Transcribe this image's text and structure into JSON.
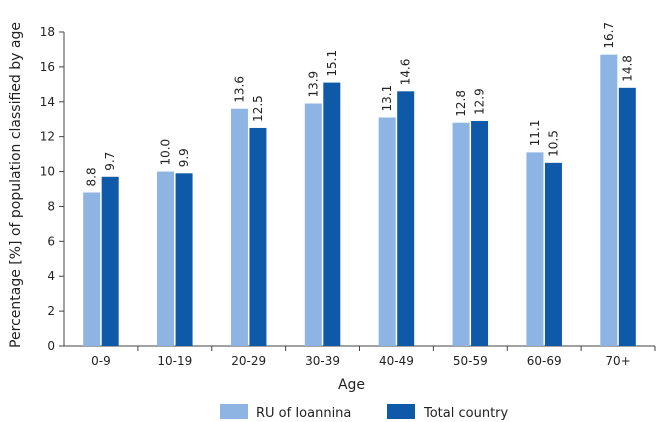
{
  "chart_data": {
    "type": "bar",
    "categories": [
      "0-9",
      "10-19",
      "20-29",
      "30-39",
      "40-49",
      "50-59",
      "60-69",
      "70+"
    ],
    "series": [
      {
        "name": "RU of Ioannina",
        "color": "#8DB4E2",
        "values": [
          8.8,
          10.0,
          13.6,
          13.9,
          13.1,
          12.8,
          11.1,
          16.7
        ],
        "labels": [
          "8.8",
          "10.0",
          "13.6",
          "13.9",
          "13.1",
          "12.8",
          "11.1",
          "16.7"
        ]
      },
      {
        "name": "Total country",
        "color": "#0F5AA8",
        "values": [
          9.7,
          9.9,
          12.5,
          15.1,
          14.6,
          12.9,
          10.5,
          14.8
        ],
        "labels": [
          "9.7",
          "9.9",
          "12.5",
          "15.1",
          "14.6",
          "12.9",
          "10.5",
          "14.8"
        ]
      }
    ],
    "title": "",
    "xlabel": "Age",
    "ylabel": "Percentage [%] of population classified by age",
    "ylim": [
      0,
      18
    ],
    "yticks": [
      0,
      2,
      4,
      6,
      8,
      10,
      12,
      14,
      16,
      18
    ],
    "ytick_labels": [
      "0",
      "2",
      "4",
      "6",
      "8",
      "10",
      "12",
      "14",
      "16",
      "18"
    ],
    "grid": false,
    "legend_position": "bottom"
  }
}
